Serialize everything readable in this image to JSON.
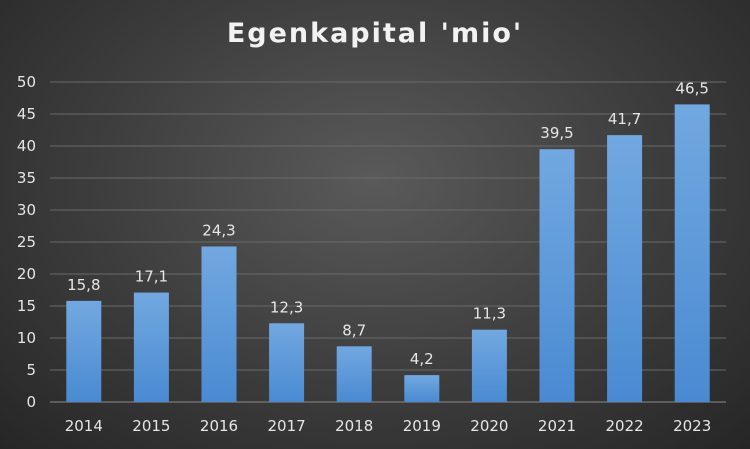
{
  "chart_data": {
    "type": "bar",
    "title": "Egenkapital 'mio'",
    "categories": [
      "2014",
      "2015",
      "2016",
      "2017",
      "2018",
      "2019",
      "2020",
      "2021",
      "2022",
      "2023"
    ],
    "values": [
      15.8,
      17.1,
      24.3,
      12.3,
      8.7,
      4.2,
      11.3,
      39.5,
      41.7,
      46.5
    ],
    "value_labels": [
      "15,8",
      "17,1",
      "24,3",
      "12,3",
      "8,7",
      "4,2",
      "11,3",
      "39,5",
      "41,7",
      "46,5"
    ],
    "ylim": [
      0,
      50
    ],
    "yticks": [
      "0",
      "5",
      "10",
      "15",
      "20",
      "25",
      "30",
      "35",
      "40",
      "45",
      "50"
    ],
    "grid": true,
    "legend": "none",
    "colors": {
      "bar_top": "#72a8e0",
      "bar_bottom": "#4a8ad2",
      "grid": "#6a6a6a",
      "text": "#e6e6e6"
    }
  }
}
